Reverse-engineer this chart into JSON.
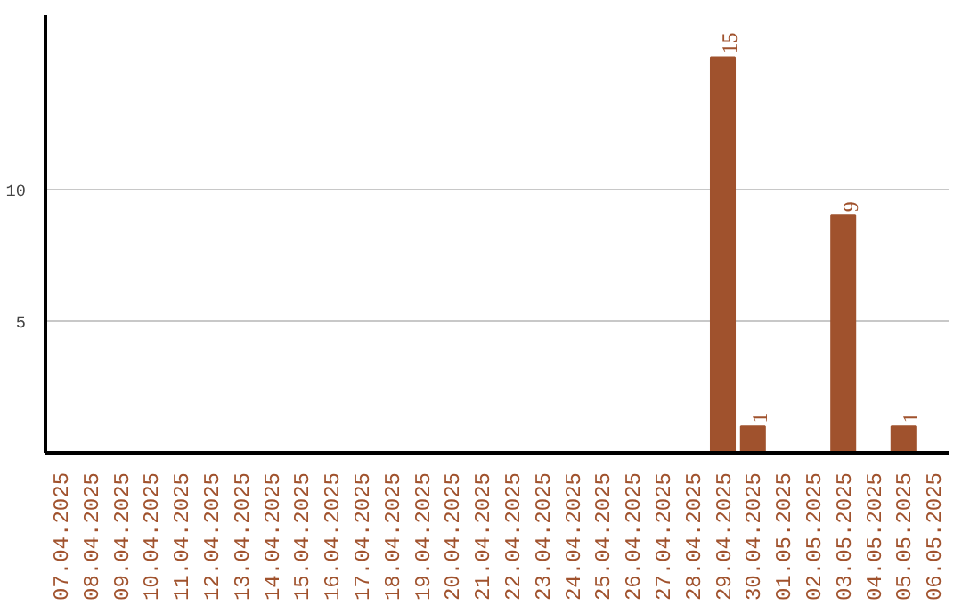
{
  "chart_data": {
    "type": "bar",
    "categories": [
      "07.04.2025",
      "08.04.2025",
      "09.04.2025",
      "10.04.2025",
      "11.04.2025",
      "12.04.2025",
      "13.04.2025",
      "14.04.2025",
      "15.04.2025",
      "16.04.2025",
      "17.04.2025",
      "18.04.2025",
      "19.04.2025",
      "20.04.2025",
      "21.04.2025",
      "22.04.2025",
      "23.04.2025",
      "24.04.2025",
      "25.04.2025",
      "26.04.2025",
      "27.04.2025",
      "28.04.2025",
      "29.04.2025",
      "30.04.2025",
      "01.05.2025",
      "02.05.2025",
      "03.05.2025",
      "04.05.2025",
      "05.05.2025",
      "06.05.2025"
    ],
    "values": [
      0,
      0,
      0,
      0,
      0,
      0,
      0,
      0,
      0,
      0,
      0,
      0,
      0,
      0,
      0,
      0,
      0,
      0,
      0,
      0,
      0,
      0,
      15,
      1,
      0,
      0,
      9,
      0,
      1,
      0
    ],
    "value_labels": [
      null,
      null,
      null,
      null,
      null,
      null,
      null,
      null,
      null,
      null,
      null,
      null,
      null,
      null,
      null,
      null,
      null,
      null,
      null,
      null,
      null,
      null,
      "15",
      "1",
      null,
      null,
      "9",
      null,
      "1",
      null
    ],
    "color": "#a0522d",
    "ylim": [
      0,
      16.6
    ],
    "yticks": [
      5,
      10
    ],
    "grid": "y"
  }
}
